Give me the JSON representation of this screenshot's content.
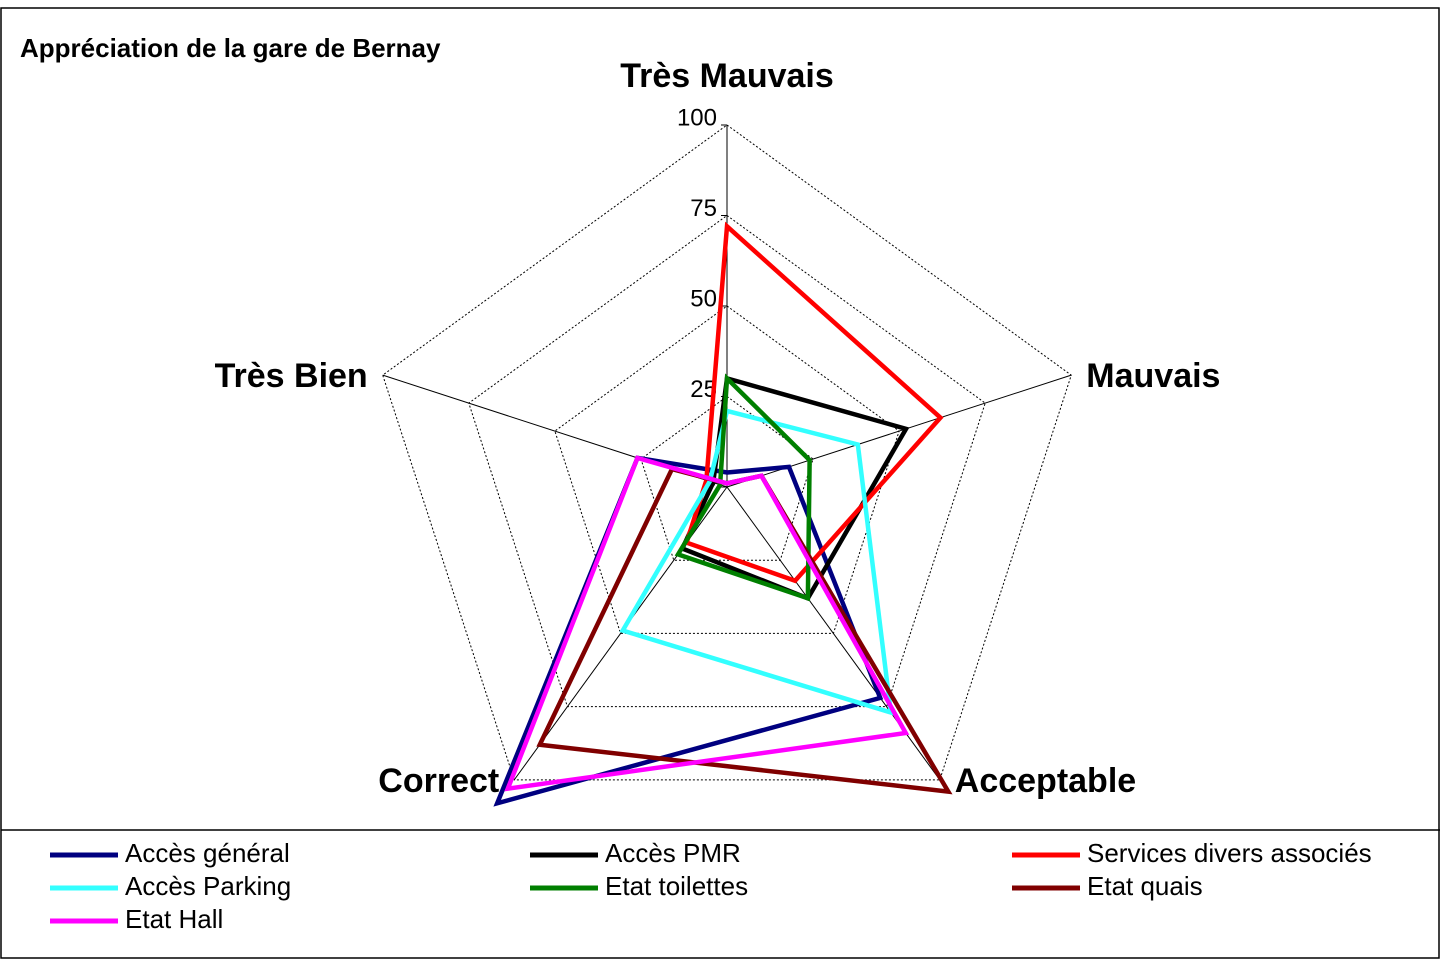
{
  "chart_data": {
    "type": "radar",
    "title": "Appréciation de la gare de Bernay",
    "categories": [
      "Très Mauvais",
      "Mauvais",
      "Acceptable",
      "Correct",
      "Très Bien"
    ],
    "ylim": [
      0,
      100
    ],
    "yticks": [
      0,
      25,
      50,
      75,
      100
    ],
    "grid": true,
    "legend": "bottom",
    "series": [
      {
        "name": "Accès général",
        "color": "#000080",
        "values": [
          4,
          18,
          72,
          108,
          26
        ]
      },
      {
        "name": "Accès PMR",
        "color": "#000000",
        "values": [
          30,
          52,
          38,
          21,
          4
        ]
      },
      {
        "name": "Services divers associés",
        "color": "#ff0000",
        "values": [
          72,
          62,
          32,
          19,
          6
        ]
      },
      {
        "name": "Accès Parking",
        "color": "#33ffff",
        "values": [
          21,
          38,
          77,
          49,
          5
        ]
      },
      {
        "name": "Etat toilettes",
        "color": "#007f00",
        "values": [
          30,
          24,
          38,
          23,
          2
        ]
      },
      {
        "name": "Etat quais",
        "color": "#800000",
        "values": [
          1,
          10,
          104,
          88,
          16
        ]
      },
      {
        "name": "Etat Hall",
        "color": "#ff00ff",
        "values": [
          1,
          10,
          84,
          103,
          26
        ]
      }
    ]
  }
}
